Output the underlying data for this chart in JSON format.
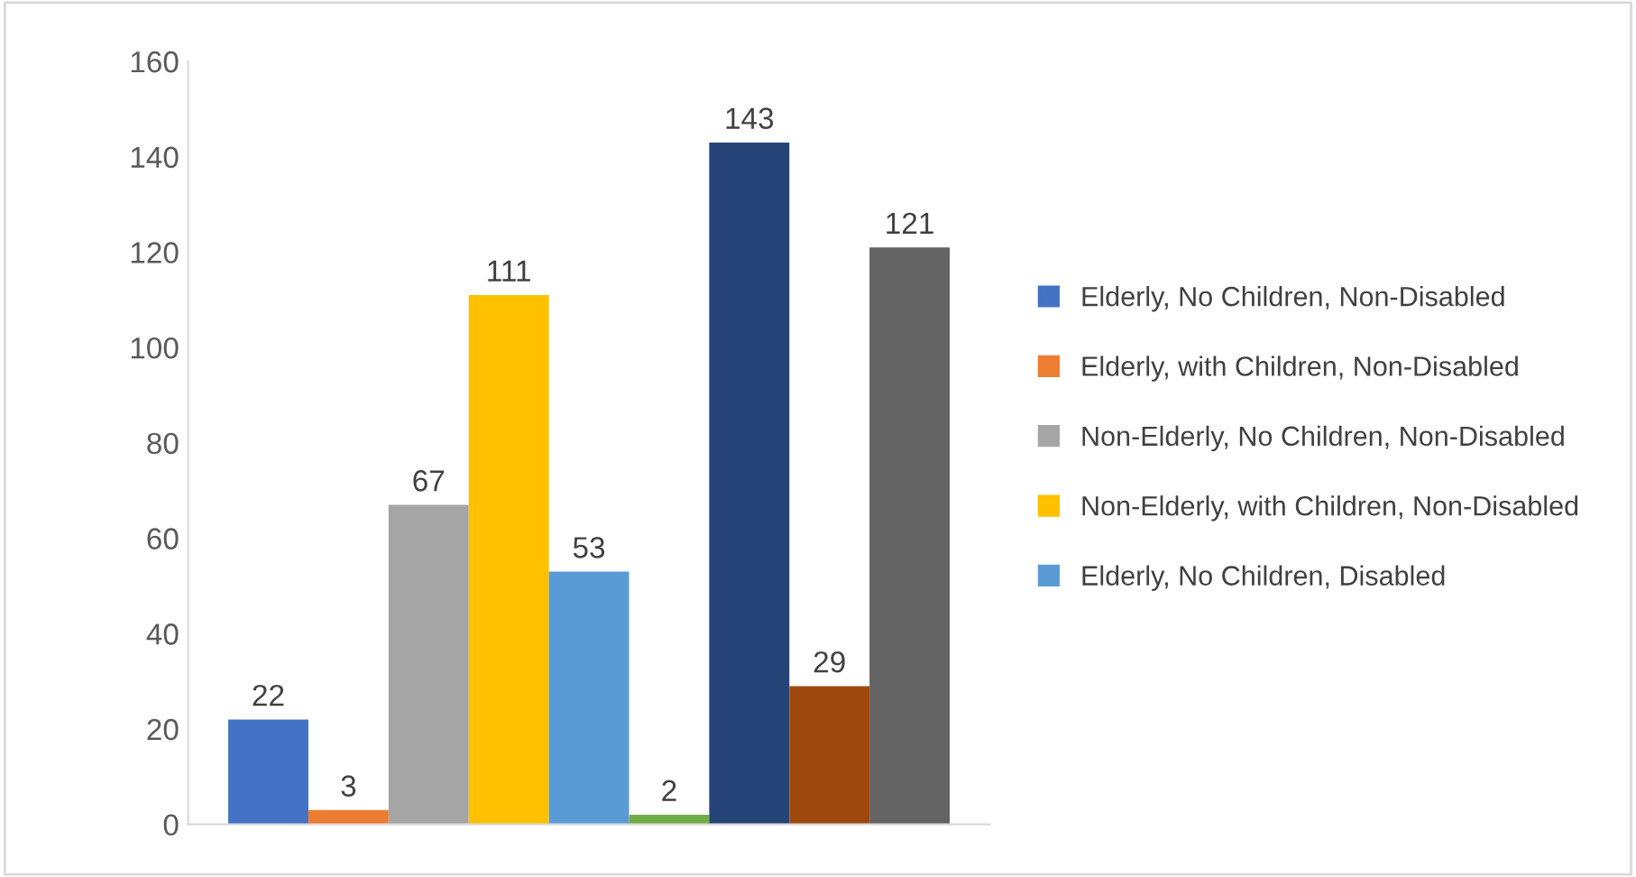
{
  "chart_data": {
    "type": "bar",
    "categories": [
      null
    ],
    "series": [
      {
        "name": "Elderly, No Children, Non-Disabled",
        "color": "#4472c4",
        "values": [
          22
        ]
      },
      {
        "name": "Elderly, with Children, Non-Disabled",
        "color": "#ed7d31",
        "values": [
          3
        ]
      },
      {
        "name": "Non-Elderly, No Children, Non-Disabled",
        "color": "#a5a5a5",
        "values": [
          67
        ]
      },
      {
        "name": "Non-Elderly, with Children, Non-Disabled",
        "color": "#ffc000",
        "values": [
          111
        ]
      },
      {
        "name": "Elderly, No Children, Disabled",
        "color": "#5b9bd5",
        "values": [
          53
        ]
      },
      {
        "color": "#70ad47",
        "values": [
          2
        ]
      },
      {
        "color": "#264478",
        "values": [
          143
        ]
      },
      {
        "color": "#9e480e",
        "values": [
          29
        ]
      },
      {
        "color": "#636363",
        "values": [
          121
        ]
      }
    ],
    "ylim": [
      0,
      160
    ],
    "yticks": [
      0,
      20,
      40,
      60,
      80,
      100,
      120,
      140,
      160
    ],
    "grid": false,
    "data_labels": true,
    "legend": "right"
  }
}
